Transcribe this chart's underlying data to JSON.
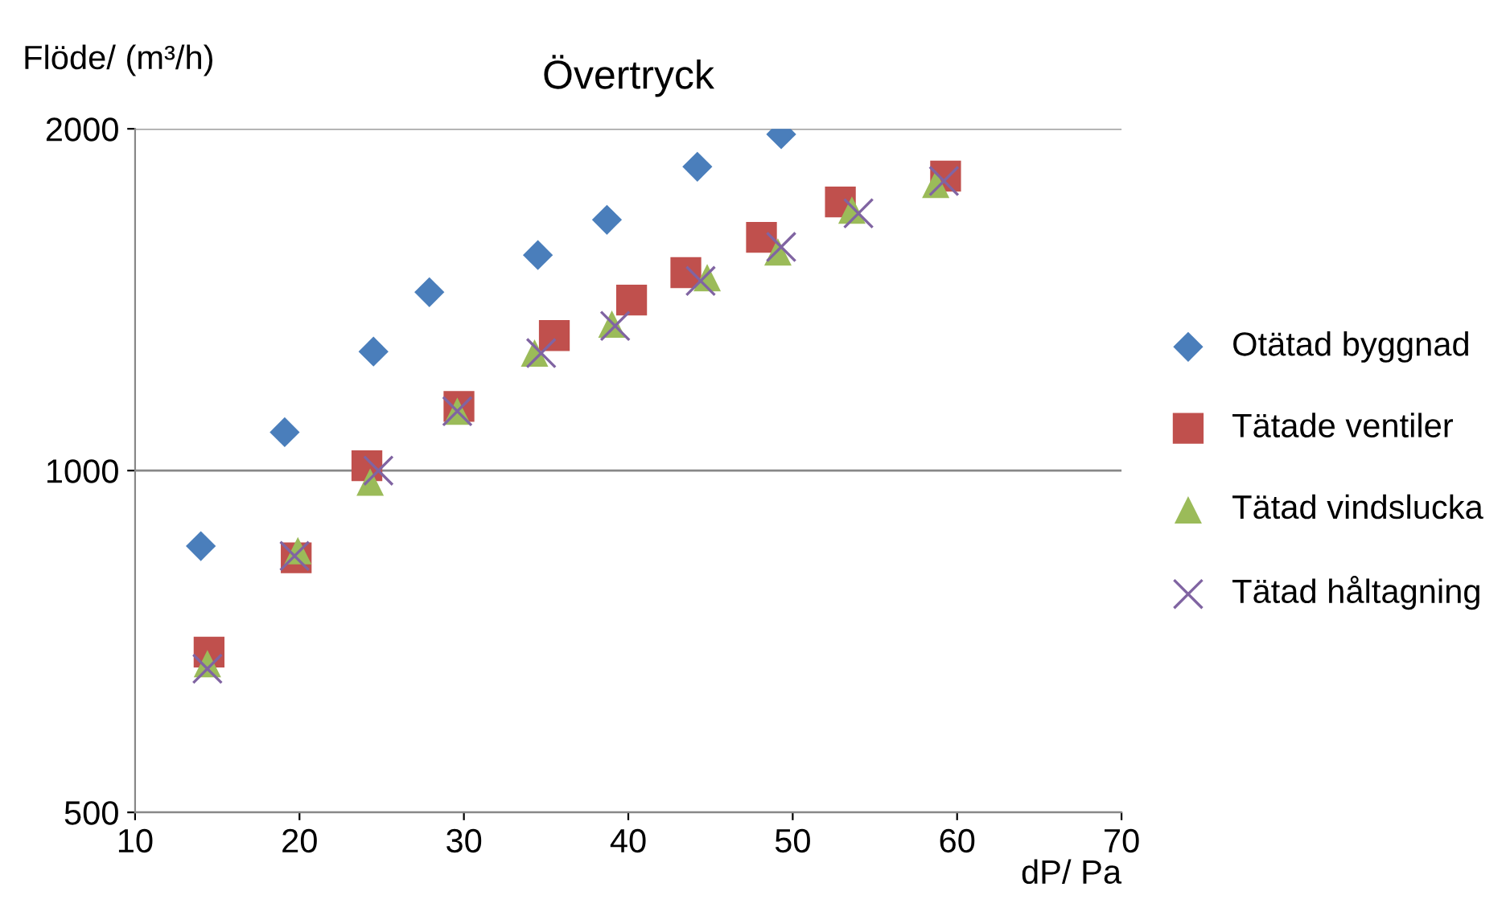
{
  "chart_data": {
    "type": "scatter",
    "title": "Övertryck",
    "xlabel": "dP/ Pa",
    "ylabel": "Flöde/ (m³/h)",
    "xlim": [
      10,
      70
    ],
    "xticks": [
      10,
      20,
      30,
      40,
      50,
      60,
      70
    ],
    "ylim": [
      500,
      2000
    ],
    "yticks": [
      500,
      1000,
      2000
    ],
    "log": true,
    "grid": "y",
    "legend": "right",
    "series": [
      {
        "name": "Otätad byggnad",
        "color": "#4a7ebb",
        "marker": "diamond",
        "x": [
          14.0,
          19.1,
          24.5,
          27.9,
          34.5,
          38.7,
          44.2,
          49.3
        ],
        "values": [
          858,
          1081,
          1273,
          1436,
          1548,
          1663,
          1852,
          1978
        ]
      },
      {
        "name": "Tätade ventiler",
        "color": "#c0504d",
        "marker": "square",
        "x": [
          14.5,
          19.8,
          24.1,
          29.7,
          35.5,
          40.2,
          43.5,
          48.1,
          52.9,
          59.3
        ],
        "values": [
          692,
          838,
          1010,
          1139,
          1315,
          1413,
          1494,
          1605,
          1724,
          1817
        ]
      },
      {
        "name": "Tätad vindslucka",
        "color": "#9bbb59",
        "marker": "triangle",
        "x": [
          14.4,
          19.9,
          24.3,
          29.6,
          34.3,
          39.0,
          44.8,
          49.1,
          53.6,
          58.7
        ],
        "values": [
          676,
          850,
          977,
          1128,
          1269,
          1346,
          1479,
          1558,
          1696,
          1787
        ]
      },
      {
        "name": "Tätad håltagning",
        "color": "#8064a2",
        "marker": "cross",
        "x": [
          14.4,
          19.7,
          24.8,
          29.6,
          34.7,
          39.2,
          44.4,
          49.3,
          54.0,
          59.2
        ],
        "values": [
          669,
          841,
          1000,
          1128,
          1269,
          1341,
          1469,
          1574,
          1685,
          1799
        ]
      }
    ]
  }
}
